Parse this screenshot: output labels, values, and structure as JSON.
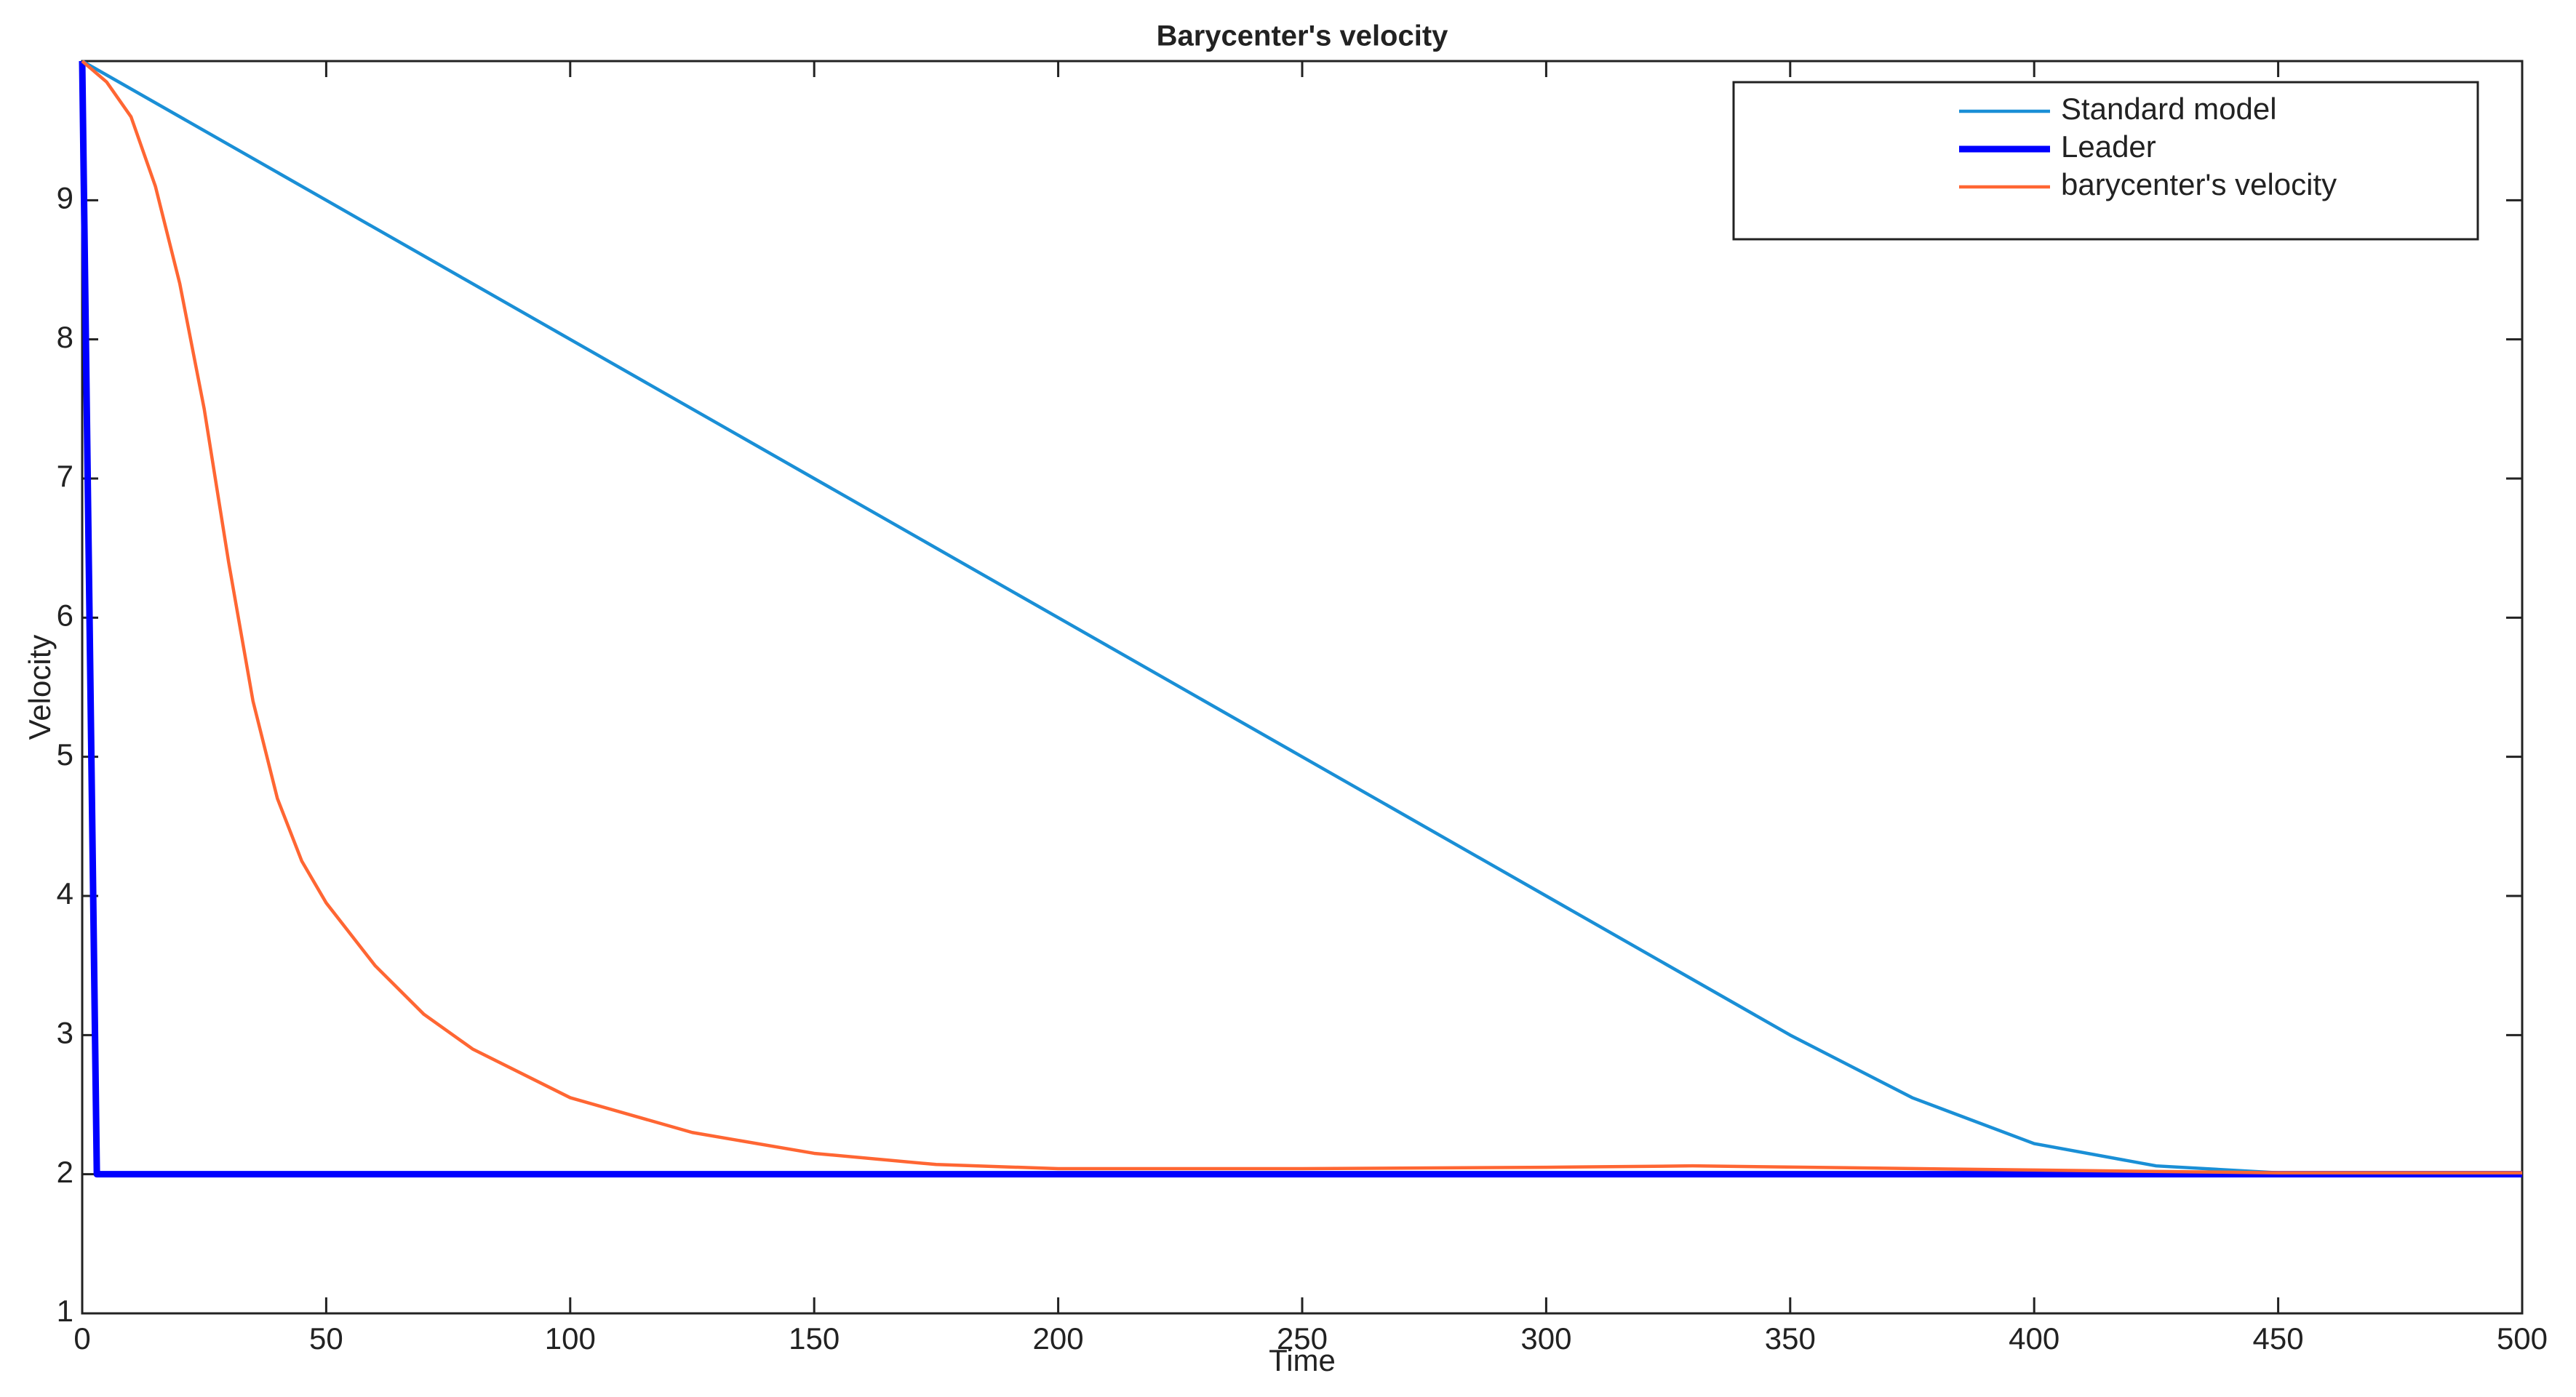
{
  "chart_data": {
    "type": "line",
    "title": "Barycenter's velocity",
    "xlabel": "Time",
    "ylabel": "Velocity",
    "xlim": [
      0,
      500
    ],
    "ylim": [
      1,
      10
    ],
    "xticks": [
      0,
      50,
      100,
      150,
      200,
      250,
      300,
      350,
      400,
      450,
      500
    ],
    "yticks": [
      1,
      2,
      3,
      4,
      5,
      6,
      7,
      8,
      9
    ],
    "grid": false,
    "legend": "upper right",
    "series": [
      {
        "name": "Standard model",
        "color": "#1a8fd6",
        "x": [
          0,
          50,
          100,
          150,
          200,
          250,
          300,
          350,
          375,
          400,
          425,
          450,
          500
        ],
        "values": [
          10,
          9,
          8,
          7,
          6,
          5,
          4,
          3,
          2.55,
          2.22,
          2.06,
          2.01,
          2
        ]
      },
      {
        "name": "Leader",
        "color": "#0000ff",
        "x": [
          0,
          3,
          500
        ],
        "values": [
          10,
          2,
          2
        ]
      },
      {
        "name": "barycenter's velocity",
        "color": "#ff6633",
        "x": [
          0,
          5,
          10,
          15,
          20,
          25,
          30,
          35,
          40,
          45,
          50,
          60,
          70,
          80,
          100,
          125,
          150,
          175,
          200,
          250,
          300,
          330,
          400,
          450,
          500
        ],
        "values": [
          10,
          9.85,
          9.6,
          9.1,
          8.4,
          7.5,
          6.4,
          5.4,
          4.7,
          4.25,
          3.95,
          3.5,
          3.15,
          2.9,
          2.55,
          2.3,
          2.15,
          2.07,
          2.04,
          2.04,
          2.05,
          2.06,
          2.03,
          2.01,
          2.01
        ]
      }
    ]
  }
}
